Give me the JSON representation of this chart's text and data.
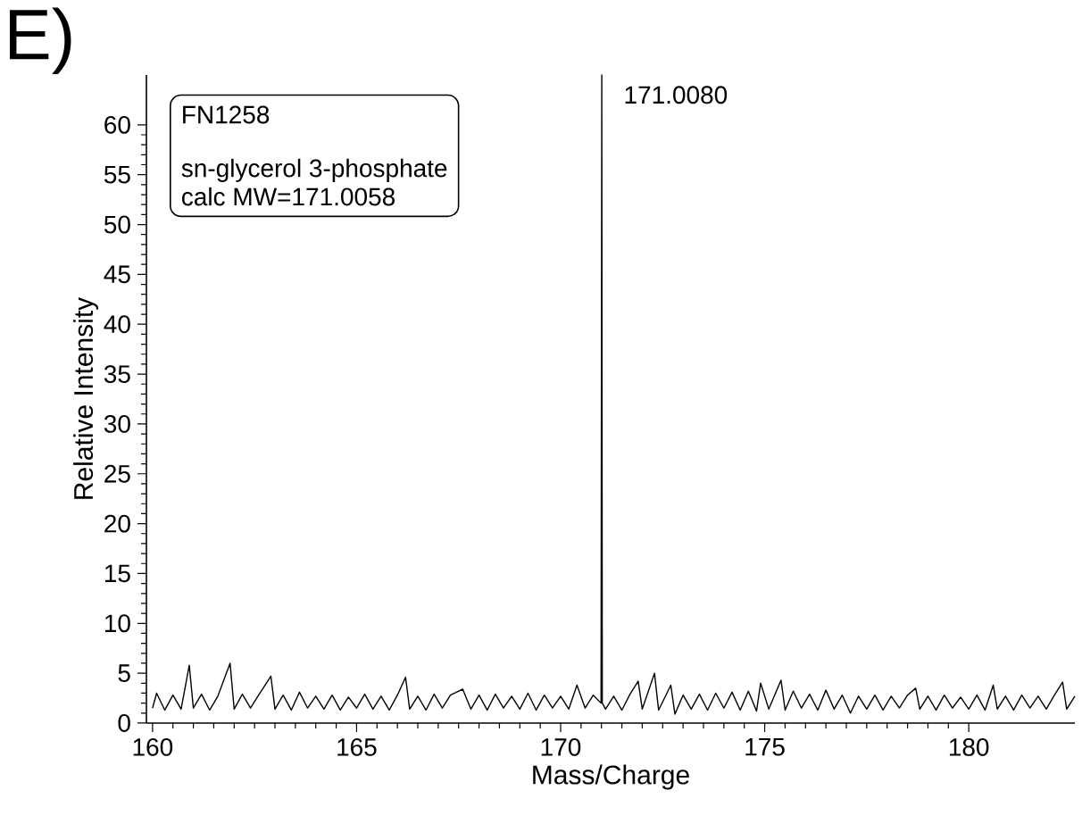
{
  "chart_data": {
    "type": "line",
    "title": "E)",
    "xlabel": "Mass/Charge",
    "ylabel": "Relative Intensity",
    "xlim": [
      159.85,
      182.6
    ],
    "ylim": [
      0,
      65
    ],
    "xticks": [
      160,
      165,
      170,
      175,
      180
    ],
    "yticks": [
      0,
      5,
      10,
      15,
      20,
      25,
      30,
      35,
      40,
      45,
      50,
      55,
      60
    ],
    "grid": false,
    "marker": "none",
    "line_style": "solid",
    "annotations": [
      {
        "text": "171.0080",
        "x": 171.008,
        "y": 65
      },
      "FN1258",
      "sn-glycerol 3-phosphate",
      "calc MW=171.0058"
    ],
    "series": [
      {
        "color": "#000000",
        "x": [
          160.0,
          160.1,
          160.3,
          160.5,
          160.7,
          160.9,
          161.0,
          161.2,
          161.4,
          161.6,
          161.9,
          162.0,
          162.2,
          162.4,
          162.6,
          162.9,
          163.0,
          163.2,
          163.4,
          163.6,
          163.8,
          164.0,
          164.2,
          164.4,
          164.6,
          164.8,
          165.0,
          165.2,
          165.4,
          165.6,
          165.8,
          166.0,
          166.2,
          166.3,
          166.5,
          166.7,
          166.9,
          167.1,
          167.3,
          167.6,
          167.8,
          168.0,
          168.2,
          168.4,
          168.6,
          168.8,
          169.0,
          169.2,
          169.4,
          169.6,
          169.8,
          170.0,
          170.2,
          170.4,
          170.6,
          170.8,
          170.99,
          171.008,
          171.02,
          171.1,
          171.3,
          171.5,
          171.7,
          171.9,
          172.0,
          172.3,
          172.4,
          172.7,
          172.8,
          173.0,
          173.2,
          173.4,
          173.6,
          173.8,
          174.0,
          174.2,
          174.4,
          174.6,
          174.8,
          174.9,
          175.1,
          175.4,
          175.5,
          175.7,
          175.9,
          176.1,
          176.3,
          176.5,
          176.7,
          176.9,
          177.1,
          177.3,
          177.5,
          177.7,
          177.9,
          178.1,
          178.3,
          178.5,
          178.7,
          178.8,
          179.0,
          179.2,
          179.4,
          179.6,
          179.8,
          180.0,
          180.2,
          180.4,
          180.6,
          180.7,
          180.9,
          181.1,
          181.3,
          181.5,
          181.7,
          181.9,
          182.1,
          182.3,
          182.4,
          182.6
        ],
        "values": [
          1.5,
          3.0,
          1.3,
          2.8,
          1.4,
          5.8,
          1.5,
          2.9,
          1.3,
          2.7,
          6.0,
          1.4,
          2.9,
          1.5,
          2.8,
          4.7,
          1.4,
          2.8,
          1.3,
          3.1,
          1.5,
          2.7,
          1.4,
          2.8,
          1.3,
          2.6,
          1.5,
          2.9,
          1.4,
          2.7,
          1.3,
          2.8,
          4.6,
          1.4,
          2.7,
          1.3,
          2.9,
          1.5,
          2.8,
          3.4,
          1.4,
          2.8,
          1.3,
          2.9,
          1.5,
          2.7,
          1.4,
          3.0,
          1.3,
          2.8,
          1.5,
          2.7,
          1.4,
          3.8,
          1.5,
          2.8,
          2.0,
          65,
          2.0,
          1.4,
          2.7,
          1.3,
          2.9,
          4.2,
          1.4,
          5.0,
          1.3,
          3.8,
          0.9,
          2.8,
          1.4,
          2.9,
          1.3,
          3.0,
          1.5,
          3.1,
          1.3,
          3.2,
          1.2,
          4.0,
          1.4,
          4.3,
          1.3,
          3.2,
          1.5,
          2.9,
          1.3,
          3.3,
          1.4,
          2.8,
          1.0,
          2.7,
          1.4,
          2.8,
          1.3,
          2.7,
          1.5,
          2.8,
          3.5,
          1.4,
          2.7,
          1.3,
          2.8,
          1.5,
          2.6,
          1.4,
          2.8,
          1.3,
          3.8,
          1.4,
          2.7,
          1.3,
          2.8,
          1.5,
          2.7,
          1.4,
          2.8,
          4.1,
          1.4,
          2.7
        ]
      }
    ]
  }
}
